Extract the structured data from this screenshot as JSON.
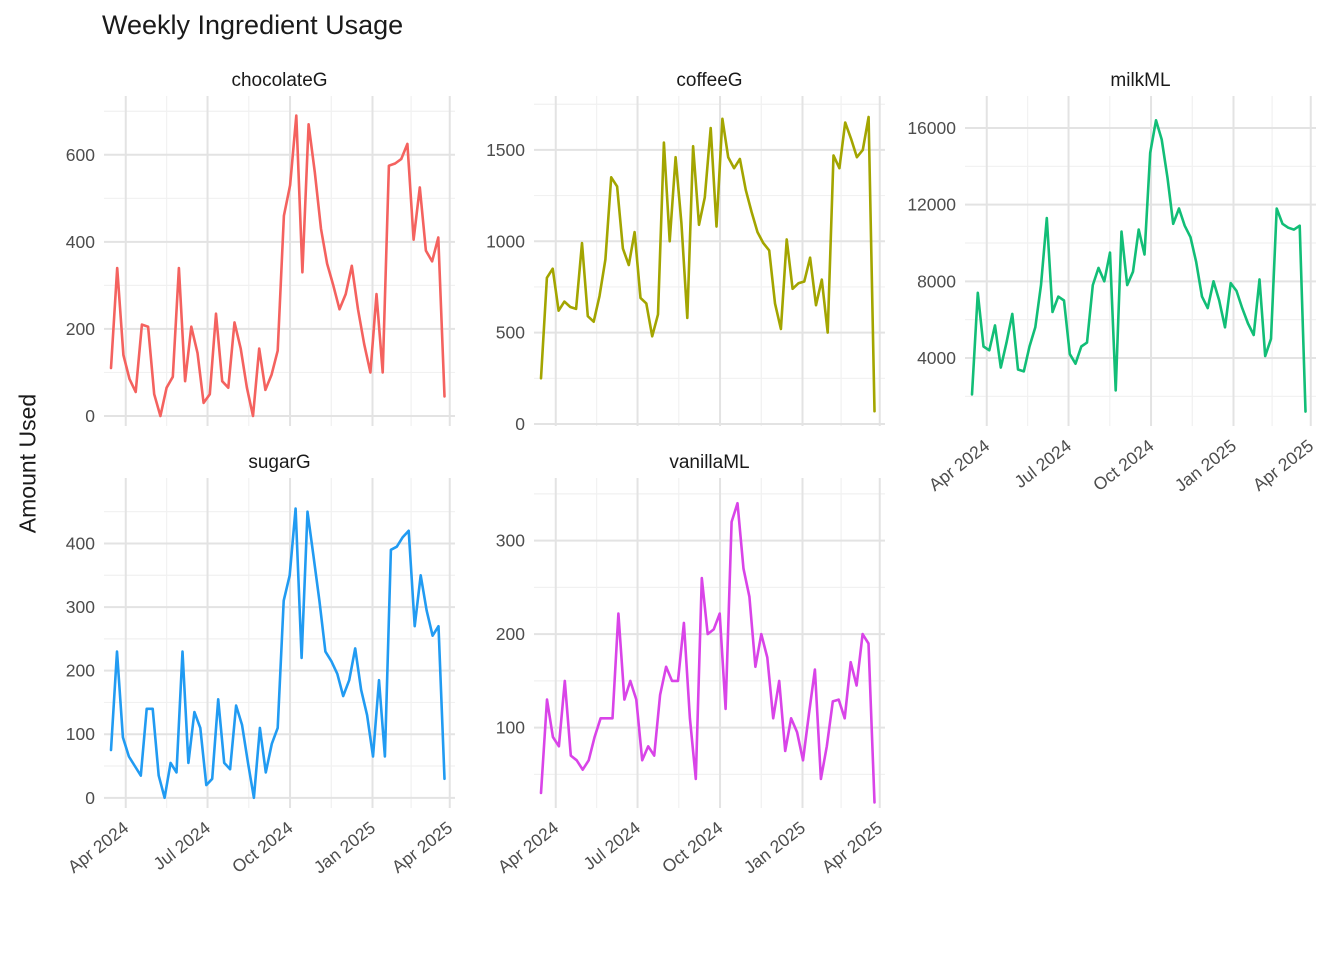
{
  "title": "Weekly Ingredient Usage",
  "chart_data": {
    "type": "line",
    "title": "Weekly Ingredient Usage",
    "xlabel": "",
    "ylabel": "Amount Used",
    "grid": "on",
    "legend": "none",
    "x_unit": "weekly dates, Apr 2024 - Apr 2025",
    "x_tick_labels": [
      "Apr 2024",
      "Jul 2024",
      "Oct 2024",
      "Jan 2025",
      "Apr 2025"
    ],
    "facets": [
      {
        "name": "chocolateG",
        "color": "#f4625f",
        "yticks": [
          0,
          200,
          400,
          600
        ],
        "ylim": [
          -23,
          735
        ],
        "show_xaxis": false,
        "values": [
          110,
          340,
          140,
          85,
          55,
          210,
          205,
          50,
          0,
          65,
          90,
          340,
          80,
          205,
          145,
          30,
          50,
          235,
          80,
          65,
          215,
          155,
          65,
          0,
          155,
          60,
          95,
          150,
          460,
          530,
          690,
          330,
          670,
          560,
          430,
          350,
          300,
          245,
          280,
          345,
          245,
          165,
          100,
          280,
          100,
          575,
          580,
          590,
          625,
          405,
          525,
          380,
          355,
          410,
          45
        ]
      },
      {
        "name": "coffeeG",
        "color": "#a3a500",
        "yticks": [
          0,
          500,
          1000,
          1500
        ],
        "ylim": [
          -11,
          1795
        ],
        "show_xaxis": false,
        "values": [
          250,
          800,
          850,
          620,
          670,
          640,
          630,
          990,
          590,
          560,
          700,
          900,
          1350,
          1300,
          960,
          870,
          1050,
          690,
          660,
          480,
          600,
          1540,
          1000,
          1460,
          1100,
          580,
          1520,
          1090,
          1240,
          1620,
          1080,
          1670,
          1460,
          1400,
          1450,
          1280,
          1160,
          1050,
          990,
          950,
          660,
          520,
          1010,
          740,
          770,
          780,
          910,
          650,
          790,
          500,
          1470,
          1400,
          1650,
          1560,
          1460,
          1500,
          1680,
          70
        ]
      },
      {
        "name": "milkML",
        "color": "#12be77",
        "yticks": [
          4000,
          8000,
          12000,
          16000
        ],
        "ylim": [
          450,
          17670
        ],
        "show_xaxis": true,
        "values": [
          2100,
          7400,
          4600,
          4400,
          5700,
          3500,
          4800,
          6300,
          3400,
          3300,
          4600,
          5600,
          7800,
          11300,
          6400,
          7200,
          7000,
          4200,
          3700,
          4600,
          4800,
          7800,
          8700,
          8000,
          9500,
          2300,
          10600,
          7800,
          8500,
          10700,
          9400,
          14700,
          16400,
          15400,
          13400,
          11000,
          11800,
          10900,
          10300,
          9000,
          7200,
          6600,
          8000,
          7000,
          5600,
          7900,
          7500,
          6600,
          5800,
          5200,
          8100,
          4100,
          5000,
          11800,
          11000,
          10800,
          10700,
          10900,
          1200
        ]
      },
      {
        "name": "sugarG",
        "color": "#219bf2",
        "yticks": [
          0,
          100,
          200,
          300,
          400
        ],
        "ylim": [
          -16,
          503
        ],
        "show_xaxis": true,
        "values": [
          75,
          230,
          95,
          65,
          50,
          35,
          140,
          140,
          35,
          0,
          55,
          40,
          230,
          55,
          135,
          110,
          20,
          30,
          155,
          55,
          45,
          145,
          115,
          55,
          0,
          110,
          40,
          85,
          110,
          310,
          350,
          455,
          220,
          450,
          380,
          310,
          230,
          215,
          195,
          160,
          185,
          235,
          170,
          130,
          65,
          185,
          65,
          390,
          395,
          410,
          420,
          270,
          350,
          295,
          255,
          270,
          30
        ]
      },
      {
        "name": "vanillaML",
        "color": "#d944e8",
        "yticks": [
          100,
          200,
          300
        ],
        "ylim": [
          14,
          367
        ],
        "show_xaxis": true,
        "values": [
          30,
          130,
          90,
          80,
          150,
          70,
          65,
          55,
          65,
          90,
          110,
          110,
          110,
          222,
          130,
          150,
          130,
          65,
          80,
          70,
          135,
          165,
          150,
          150,
          212,
          110,
          45,
          260,
          200,
          205,
          222,
          120,
          320,
          340,
          270,
          240,
          165,
          200,
          175,
          110,
          150,
          75,
          110,
          95,
          65,
          115,
          162,
          45,
          80,
          128,
          130,
          110,
          170,
          145,
          200,
          190,
          20
        ]
      }
    ]
  },
  "layout_note": "faceted weekly time-series, 5 panels (2 rows x 3 cols), bottom-right cell empty"
}
